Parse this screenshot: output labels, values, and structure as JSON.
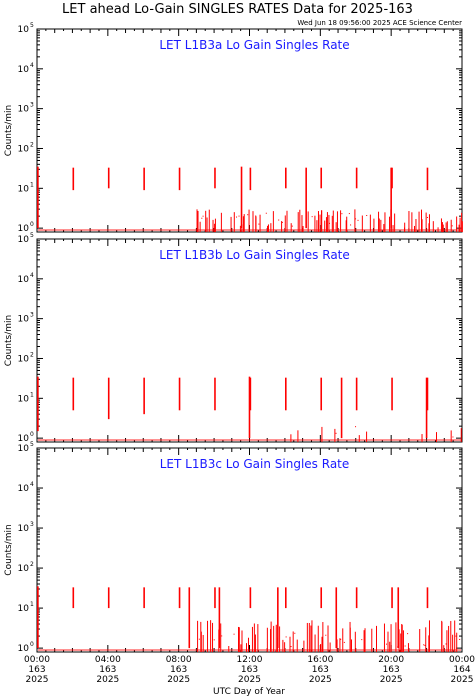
{
  "figure": {
    "title": "LET ahead Lo-Gain SINGLES RATES Data for 2025-163",
    "timestamp": "Wed Jun 18 09:56:00 2025 ACE Science Center",
    "xlabel": "UTC Day of Year",
    "ylabel": "Counts/min",
    "colors": {
      "data": "#ff0000",
      "panel_title": "#1a1aff",
      "axes": "#000000"
    }
  },
  "x_ticks": [
    {
      "time": "00:00",
      "day": "163",
      "year": "2025"
    },
    {
      "time": "04:00",
      "day": "163",
      "year": "2025"
    },
    {
      "time": "08:00",
      "day": "163",
      "year": "2025"
    },
    {
      "time": "12:00",
      "day": "163",
      "year": "2025"
    },
    {
      "time": "16:00",
      "day": "163",
      "year": "2025"
    },
    {
      "time": "20:00",
      "day": "163",
      "year": "2025"
    },
    {
      "time": "00:00",
      "day": "164",
      "year": "2025"
    }
  ],
  "y_ticks": [
    {
      "base": "10",
      "exp": "0"
    },
    {
      "base": "10",
      "exp": "1"
    },
    {
      "base": "10",
      "exp": "2"
    },
    {
      "base": "10",
      "exp": "3"
    },
    {
      "base": "10",
      "exp": "4"
    },
    {
      "base": "10",
      "exp": "5"
    }
  ],
  "chart_data": [
    {
      "type": "line",
      "title": "LET L1B3a Lo Gain Singles Rate",
      "xlabel": "",
      "ylabel": "Counts/min",
      "xlim": [
        0,
        24
      ],
      "ylim": [
        0.8,
        100000
      ],
      "yscale": "log",
      "x_unit": "hours UTC, day 163 of 2025",
      "series": [
        {
          "color": "#ff0000",
          "spikes": [
            {
              "x": 0.05,
              "y_low": 1.0,
              "y_high": 35
            },
            {
              "x": 2.05,
              "y_low": 9,
              "y_high": 33
            },
            {
              "x": 4.05,
              "y_low": 10,
              "y_high": 33
            },
            {
              "x": 6.05,
              "y_low": 9,
              "y_high": 33
            },
            {
              "x": 8.05,
              "y_low": 9,
              "y_high": 33
            },
            {
              "x": 10.05,
              "y_low": 10,
              "y_high": 33
            },
            {
              "x": 12.05,
              "y_low": 9,
              "y_high": 33
            },
            {
              "x": 14.05,
              "y_low": 10,
              "y_high": 33
            },
            {
              "x": 16.05,
              "y_low": 10,
              "y_high": 33
            },
            {
              "x": 18.05,
              "y_low": 10,
              "y_high": 33
            },
            {
              "x": 20.05,
              "y_low": 10,
              "y_high": 33
            },
            {
              "x": 22.05,
              "y_low": 9,
              "y_high": 33
            },
            {
              "x": 11.55,
              "y_low": 1.0,
              "y_high": 35
            },
            {
              "x": 15.2,
              "y_low": 1.0,
              "y_high": 33
            },
            {
              "x": 20.0,
              "y_low": 1.0,
              "y_high": 33
            }
          ],
          "noise_window": [
            9.0,
            24.0
          ],
          "noise_peak": 3,
          "noise_density": "high"
        }
      ]
    },
    {
      "type": "line",
      "title": "LET L1B3b Lo Gain Singles Rate",
      "xlabel": "",
      "ylabel": "Counts/min",
      "xlim": [
        0,
        24
      ],
      "ylim": [
        0.8,
        100000
      ],
      "yscale": "log",
      "x_unit": "hours UTC, day 163 of 2025",
      "series": [
        {
          "color": "#ff0000",
          "spikes": [
            {
              "x": 0.05,
              "y_low": 1.5,
              "y_high": 35
            },
            {
              "x": 2.05,
              "y_low": 5,
              "y_high": 33
            },
            {
              "x": 4.05,
              "y_low": 3,
              "y_high": 33
            },
            {
              "x": 6.05,
              "y_low": 4,
              "y_high": 33
            },
            {
              "x": 8.05,
              "y_low": 5,
              "y_high": 33
            },
            {
              "x": 10.05,
              "y_low": 5,
              "y_high": 33
            },
            {
              "x": 12.05,
              "y_low": 5,
              "y_high": 33
            },
            {
              "x": 14.05,
              "y_low": 5,
              "y_high": 33
            },
            {
              "x": 16.05,
              "y_low": 5,
              "y_high": 33
            },
            {
              "x": 18.05,
              "y_low": 5,
              "y_high": 33
            },
            {
              "x": 20.05,
              "y_low": 5,
              "y_high": 33
            },
            {
              "x": 22.05,
              "y_low": 5,
              "y_high": 33
            },
            {
              "x": 12.0,
              "y_low": 1.0,
              "y_high": 35
            },
            {
              "x": 17.2,
              "y_low": 1.0,
              "y_high": 33
            },
            {
              "x": 22.0,
              "y_low": 1.0,
              "y_high": 33
            }
          ],
          "noise_window": [
            14.0,
            24.0
          ],
          "noise_peak": 2,
          "noise_density": "low"
        }
      ]
    },
    {
      "type": "line",
      "title": "LET L1B3c Lo Gain Singles Rate",
      "xlabel": "UTC Day of Year",
      "ylabel": "Counts/min",
      "xlim": [
        0,
        24
      ],
      "ylim": [
        0.8,
        100000
      ],
      "yscale": "log",
      "x_unit": "hours UTC, day 163 of 2025",
      "series": [
        {
          "color": "#ff0000",
          "spikes": [
            {
              "x": 0.05,
              "y_low": 1.0,
              "y_high": 35
            },
            {
              "x": 2.05,
              "y_low": 10,
              "y_high": 33
            },
            {
              "x": 4.05,
              "y_low": 10,
              "y_high": 33
            },
            {
              "x": 6.05,
              "y_low": 10,
              "y_high": 33
            },
            {
              "x": 8.05,
              "y_low": 10,
              "y_high": 33
            },
            {
              "x": 10.05,
              "y_low": 10,
              "y_high": 33
            },
            {
              "x": 12.05,
              "y_low": 10,
              "y_high": 33
            },
            {
              "x": 14.05,
              "y_low": 10,
              "y_high": 33
            },
            {
              "x": 16.05,
              "y_low": 10,
              "y_high": 33
            },
            {
              "x": 18.05,
              "y_low": 10,
              "y_high": 33
            },
            {
              "x": 20.05,
              "y_low": 10,
              "y_high": 33
            },
            {
              "x": 22.05,
              "y_low": 10,
              "y_high": 33
            },
            {
              "x": 8.6,
              "y_low": 1.0,
              "y_high": 33
            },
            {
              "x": 10.3,
              "y_low": 1.0,
              "y_high": 33
            },
            {
              "x": 13.6,
              "y_low": 1.0,
              "y_high": 33
            },
            {
              "x": 16.9,
              "y_low": 1.0,
              "y_high": 33
            },
            {
              "x": 20.4,
              "y_low": 1.0,
              "y_high": 33
            }
          ],
          "noise_window": [
            9.0,
            24.0
          ],
          "noise_peak": 5,
          "noise_density": "high"
        }
      ]
    }
  ]
}
